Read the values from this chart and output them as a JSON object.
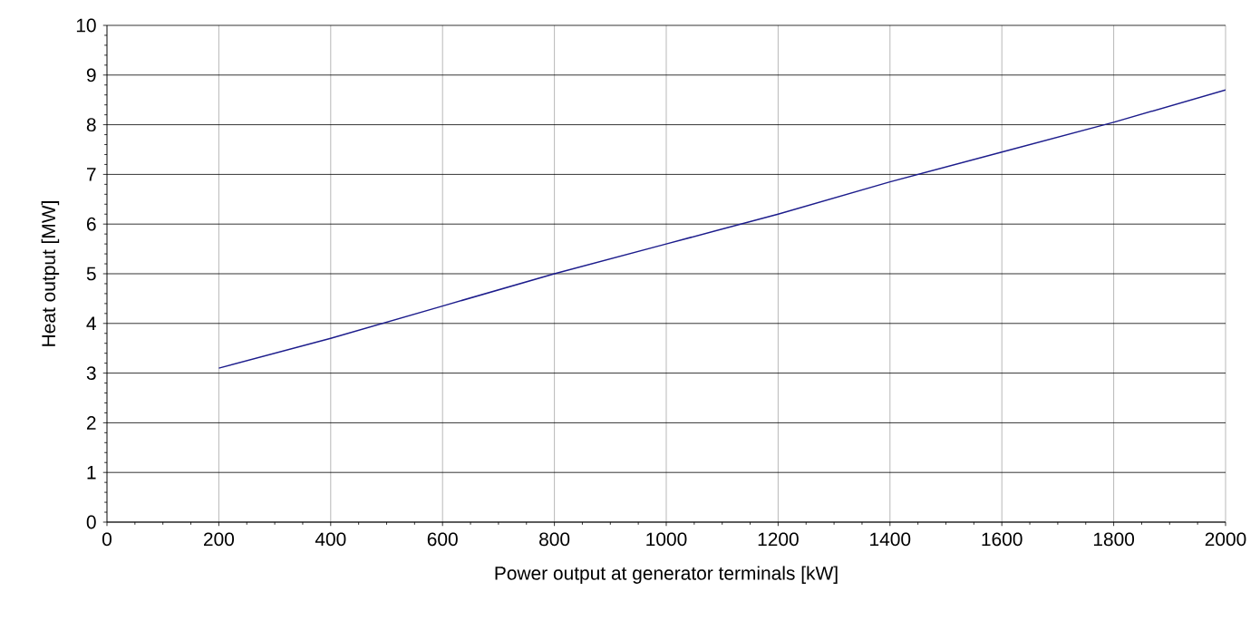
{
  "chart_data": {
    "type": "line",
    "xlabel": "Power output at generator terminals [kW]",
    "ylabel": "Heat output [MW]",
    "x": [
      200,
      400,
      600,
      800,
      1000,
      1200,
      1400,
      1600,
      1800,
      2000
    ],
    "series": [
      {
        "color": "#1c1c8c",
        "values": [
          3.1,
          3.7,
          4.35,
          5.0,
          5.6,
          6.2,
          6.85,
          7.45,
          8.05,
          8.7
        ]
      }
    ],
    "xlim": [
      0,
      2000
    ],
    "ylim": [
      0,
      10
    ],
    "xticks": [
      0,
      200,
      400,
      600,
      800,
      1000,
      1200,
      1400,
      1600,
      1800,
      2000
    ],
    "yticks": [
      0,
      1,
      2,
      3,
      4,
      5,
      6,
      7,
      8,
      9,
      10
    ],
    "grid": true,
    "marker": "none",
    "line_style": "solid"
  }
}
